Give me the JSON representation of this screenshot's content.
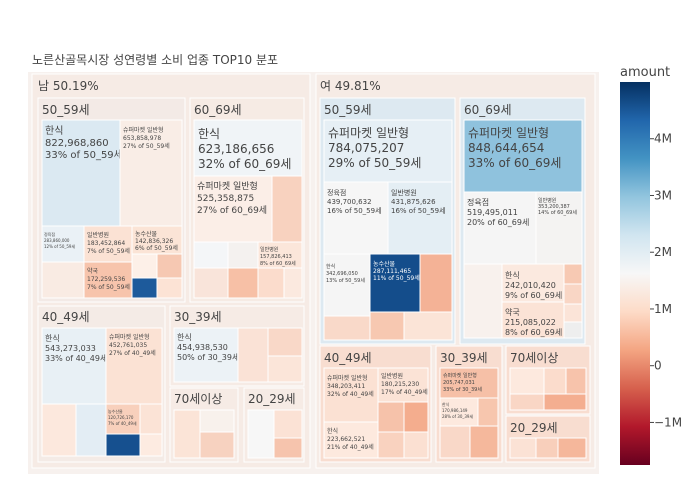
{
  "chart_data": {
    "type": "treemap",
    "title": "노른산골목시장 성연령별 소비 업종 TOP10 분포",
    "colorbar": {
      "title": "amount",
      "tick_labels": [
        "4M",
        "3M",
        "2M",
        "1M",
        "0",
        "−1M"
      ],
      "tick_values": [
        4000000,
        3000000,
        2000000,
        1000000,
        0,
        -1000000
      ],
      "range": [
        -1750000,
        5000000
      ],
      "colorscale": "RdBu_r"
    },
    "groups": [
      {
        "label": "남 50.19%",
        "children": [
          {
            "label": "50_59세",
            "items": [
              {
                "name": "한식",
                "value": 822968860,
                "text": [
                  "한식",
                  "822,968,860",
                  "33% of 50_59세"
                ]
              },
              {
                "name": "슈퍼마켓 일반형",
                "value": 653858978,
                "text": [
                  "슈퍼마켓 일반형",
                  "653,858,978",
                  "27% of 50_59세"
                ]
              },
              {
                "name": "정육점",
                "value": 283860000,
                "text": [
                  "정육점",
                  "283,860,000",
                  "12% of 50_59세"
                ]
              },
              {
                "name": "일반병원",
                "value": 183452864,
                "text": [
                  "일반병원",
                  "183,452,864",
                  "7% of 50_59세"
                ]
              },
              {
                "name": "농수산물",
                "value": 142836326,
                "text": [
                  "농수산물",
                  "142,836,326",
                  "6% of 50_59세"
                ]
              },
              {
                "name": "약국",
                "value": 172259536,
                "text": [
                  "약국",
                  "172,259,536",
                  "7% of 50_59세"
                ]
              }
            ]
          },
          {
            "label": "60_69세",
            "items": [
              {
                "name": "한식",
                "value": 623186656,
                "text": [
                  "한식",
                  "623,186,656",
                  "32% of 60_69세"
                ]
              },
              {
                "name": "슈퍼마켓 일반형",
                "value": 525358875,
                "text": [
                  "슈퍼마켓 일반형",
                  "525,358,875",
                  "27% of 60_69세"
                ]
              },
              {
                "name": "일반병원",
                "value": 157826413,
                "text": [
                  "일반병원",
                  "157,826,413",
                  "8% of 60_69세"
                ]
              }
            ]
          },
          {
            "label": "40_49세",
            "items": [
              {
                "name": "한식",
                "value": 543273033,
                "text": [
                  "한식",
                  "543,273,033",
                  "33% of 40_49세"
                ]
              },
              {
                "name": "슈퍼마켓 일반형",
                "value": 452761035,
                "text": [
                  "슈퍼마켓 일반형",
                  "452,761,035",
                  "27% of 40_49세"
                ]
              },
              {
                "name": "농수산물",
                "value": 120726170,
                "text": [
                  "농수산물",
                  "120,726,170",
                  "7% of 40_49세"
                ]
              }
            ]
          },
          {
            "label": "30_39세",
            "items": [
              {
                "name": "한식",
                "value": 454938530,
                "text": [
                  "한식",
                  "454,938,530",
                  "50% of 30_39세"
                ]
              }
            ]
          },
          {
            "label": "70세이상",
            "items": []
          },
          {
            "label": "20_29세",
            "items": []
          }
        ]
      },
      {
        "label": "여 49.81%",
        "children": [
          {
            "label": "50_59세",
            "items": [
              {
                "name": "슈퍼마켓 일반형",
                "value": 784075207,
                "text": [
                  "슈퍼마켓 일반형",
                  "784,075,207",
                  "29% of 50_59세"
                ]
              },
              {
                "name": "정육점",
                "value": 439700632,
                "text": [
                  "정육점",
                  "439,700,632",
                  "16% of 50_59세"
                ]
              },
              {
                "name": "일반병원",
                "value": 431875626,
                "text": [
                  "일반병원",
                  "431,875,626",
                  "16% of 50_59세"
                ]
              },
              {
                "name": "한식",
                "value": 342696050,
                "text": [
                  "한식",
                  "342,696,050",
                  "13% of 50_59세"
                ]
              },
              {
                "name": "농수산물",
                "value": 287111465,
                "text": [
                  "농수산물",
                  "287,111,465",
                  "11% of 50_59세"
                ]
              }
            ]
          },
          {
            "label": "60_69세",
            "items": [
              {
                "name": "슈퍼마켓 일반형",
                "value": 848644654,
                "text": [
                  "슈퍼마켓 일반형",
                  "848,644,654",
                  "33% of 60_69세"
                ]
              },
              {
                "name": "정육점",
                "value": 519495011,
                "text": [
                  "정육점",
                  "519,495,011",
                  "20% of 60_69세"
                ]
              },
              {
                "name": "일반병원",
                "value": 353200387,
                "text": [
                  "일반병원",
                  "353,200,387",
                  "14% of 60_69세"
                ]
              },
              {
                "name": "한식",
                "value": 242010420,
                "text": [
                  "한식",
                  "242,010,420",
                  "9% of 60_69세"
                ]
              },
              {
                "name": "약국",
                "value": 215085022,
                "text": [
                  "약국",
                  "215,085,022",
                  "8% of 60_69세"
                ]
              }
            ]
          },
          {
            "label": "40_49세",
            "items": [
              {
                "name": "슈퍼마켓 일반형",
                "value": 348203411,
                "text": [
                  "슈퍼마켓 일반형",
                  "348,203,411",
                  "32% of 40_49세"
                ]
              },
              {
                "name": "한식",
                "value": 223662521,
                "text": [
                  "한식",
                  "223,662,521",
                  "21% of 40_49세"
                ]
              },
              {
                "name": "일반병원",
                "value": 180215230,
                "text": [
                  "일반병원",
                  "180,215,230",
                  "17% of 40_49세"
                ]
              }
            ]
          },
          {
            "label": "30_39세",
            "items": [
              {
                "name": "슈퍼마켓 일반형",
                "value": 205747031,
                "text": [
                  "슈퍼마켓 일반형",
                  "205,747,031",
                  "33% of 30_39세"
                ]
              },
              {
                "name": "한식",
                "value": 170986149,
                "text": [
                  "한식",
                  "170,986,149",
                  "28% of 30_39세"
                ]
              }
            ]
          },
          {
            "label": "70세이상",
            "items": []
          },
          {
            "label": "20_29세",
            "items": []
          }
        ]
      }
    ]
  }
}
